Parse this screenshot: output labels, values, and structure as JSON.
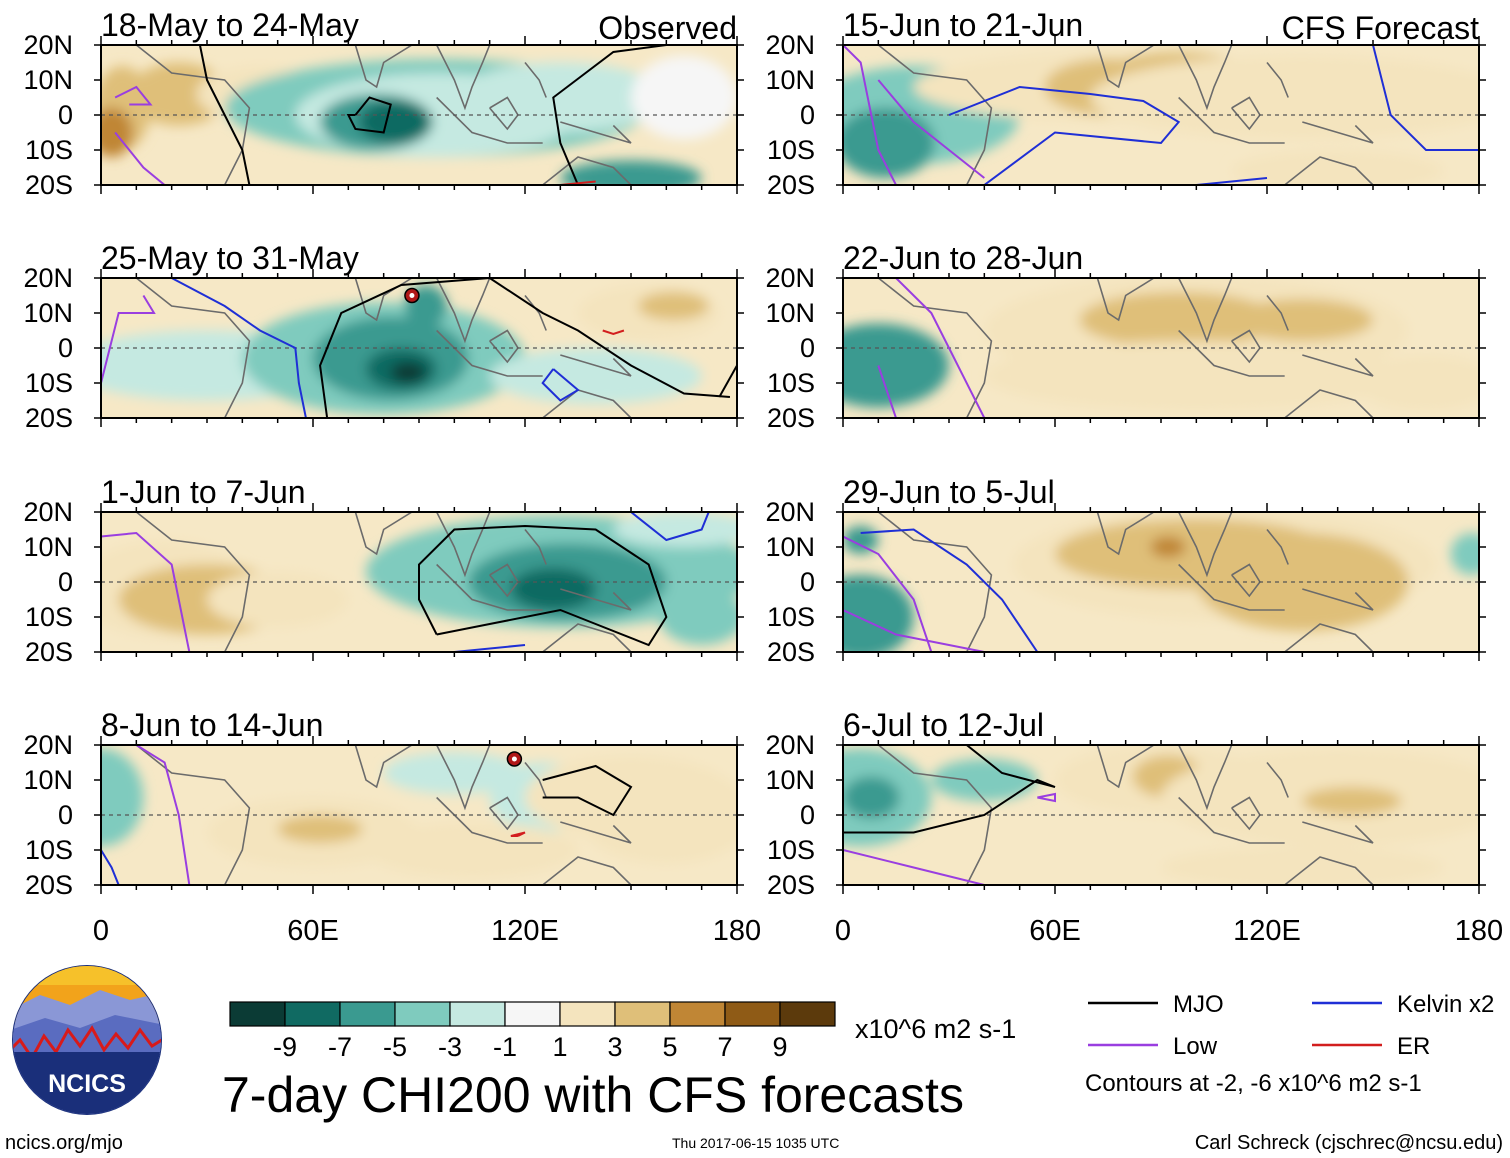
{
  "chart_data": {
    "type": "heatmap",
    "title": "7-day CHI200 with CFS forecasts",
    "units": "x10^6 m2 s-1",
    "longitude_range": [
      0,
      180
    ],
    "latitude_range": [
      -20,
      20
    ],
    "x_ticks": [
      "0",
      "60E",
      "120E",
      "180"
    ],
    "y_ticks": [
      "20N",
      "10N",
      "0",
      "10S",
      "20S"
    ],
    "columns": [
      {
        "label": "Observed",
        "panels": [
          {
            "period": "18-May to 24-May"
          },
          {
            "period": "25-May to 31-May"
          },
          {
            "period": "1-Jun to 7-Jun"
          },
          {
            "period": "8-Jun to 14-Jun"
          }
        ]
      },
      {
        "label": "CFS Forecast",
        "panels": [
          {
            "period": "15-Jun to 21-Jun"
          },
          {
            "period": "22-Jun to 28-Jun"
          },
          {
            "period": "29-Jun to 5-Jul"
          },
          {
            "period": "6-Jul to 12-Jul"
          }
        ]
      }
    ],
    "colorbar": {
      "labels": [
        "-9",
        "-7",
        "-5",
        "-3",
        "-1",
        "1",
        "3",
        "5",
        "7",
        "9"
      ],
      "colors": [
        "#0b3b35",
        "#106a62",
        "#3a9a90",
        "#7fcbbe",
        "#c5e9e1",
        "#f6f6f6",
        "#f4e4be",
        "#dfbf79",
        "#c08635",
        "#8f5b16",
        "#5c3a0c"
      ]
    },
    "legend": {
      "series": [
        {
          "name": "MJO",
          "color": "#000000"
        },
        {
          "name": "Kelvin x2",
          "color": "#1f2fd6"
        },
        {
          "name": "Low",
          "color": "#9a3ee0"
        },
        {
          "name": "ER",
          "color": "#d21e1e"
        }
      ],
      "note": "Contours at -2, -6 x10^6 m2 s-1"
    }
  },
  "footer": {
    "logo_text": "NCICS",
    "site": "ncics.org/mjo",
    "timestamp": "Thu 2017-06-15 1035 UTC",
    "author": "Carl Schreck (cjschrec@ncsu.edu)"
  }
}
